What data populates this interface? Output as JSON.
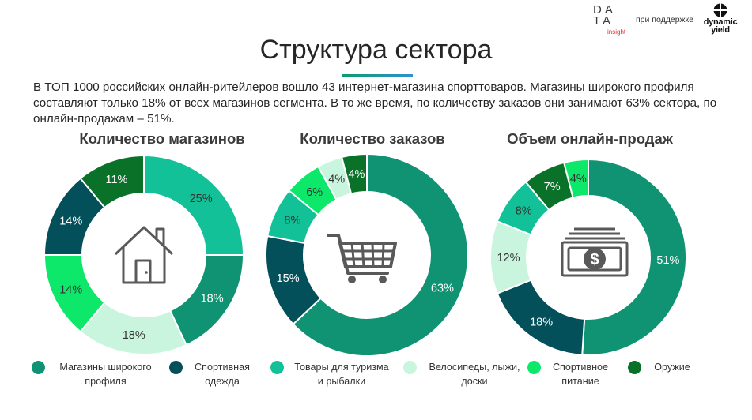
{
  "header": {
    "logo_rows": [
      "DA",
      "TA"
    ],
    "logo_sub": "insight",
    "support_text": "при поддержке",
    "partner_logo_text": "dynamic yield"
  },
  "title": "Структура сектора",
  "intro": "В ТОП 1000 российских онлайн-ритейлеров вошло 43 интернет-магазина спорттоваров. Магазины широкого профиля составляют только 18% от всех магазинов сегмента. В то же время, по количеству заказов они занимают 63% сектора, по онлайн-продажам – 51%.",
  "colors": {
    "broad": "#0f9372",
    "clothing": "#04505a",
    "tourism": "#12c198",
    "bikes": "#c9f5de",
    "nutrition": "#0ee86a",
    "weapons": "#0a7128",
    "icon": "#595959"
  },
  "legend": [
    {
      "key": "broad",
      "label": "Магазины широкого профиля"
    },
    {
      "key": "clothing",
      "label": "Спортивная одежда"
    },
    {
      "key": "tourism",
      "label": "Товары для туризма и рыбалки"
    },
    {
      "key": "bikes",
      "label": "Велосипеды, лыжи, доски"
    },
    {
      "key": "nutrition",
      "label": "Спортивное питание"
    },
    {
      "key": "weapons",
      "label": "Оружие"
    }
  ],
  "chart_data": [
    {
      "type": "pie",
      "donut": true,
      "title": "Количество магазинов",
      "center_icon": "house-icon",
      "slices": [
        {
          "key": "tourism",
          "value": 25,
          "label": "25%"
        },
        {
          "key": "broad",
          "value": 18,
          "label": "18%"
        },
        {
          "key": "bikes",
          "value": 18,
          "label": "18%"
        },
        {
          "key": "nutrition",
          "value": 14,
          "label": "14%"
        },
        {
          "key": "clothing",
          "value": 14,
          "label": "14%"
        },
        {
          "key": "weapons",
          "value": 11,
          "label": "11%"
        }
      ]
    },
    {
      "type": "pie",
      "donut": true,
      "title": "Количество заказов",
      "center_icon": "shopping-cart-icon",
      "slices": [
        {
          "key": "broad",
          "value": 63,
          "label": "63%"
        },
        {
          "key": "clothing",
          "value": 15,
          "label": "15%"
        },
        {
          "key": "tourism",
          "value": 8,
          "label": "8%"
        },
        {
          "key": "nutrition",
          "value": 6,
          "label": "6%"
        },
        {
          "key": "bikes",
          "value": 4,
          "label": "4%"
        },
        {
          "key": "weapons",
          "value": 4,
          "label": "4%"
        }
      ]
    },
    {
      "type": "pie",
      "donut": true,
      "title": "Объем онлайн-продаж",
      "center_icon": "money-stack-icon",
      "slices": [
        {
          "key": "broad",
          "value": 51,
          "label": "51%"
        },
        {
          "key": "clothing",
          "value": 18,
          "label": "18%"
        },
        {
          "key": "bikes",
          "value": 12,
          "label": "12%"
        },
        {
          "key": "tourism",
          "value": 8,
          "label": "8%"
        },
        {
          "key": "weapons",
          "value": 7,
          "label": "7%"
        },
        {
          "key": "nutrition",
          "value": 4,
          "label": "4%"
        }
      ]
    }
  ]
}
